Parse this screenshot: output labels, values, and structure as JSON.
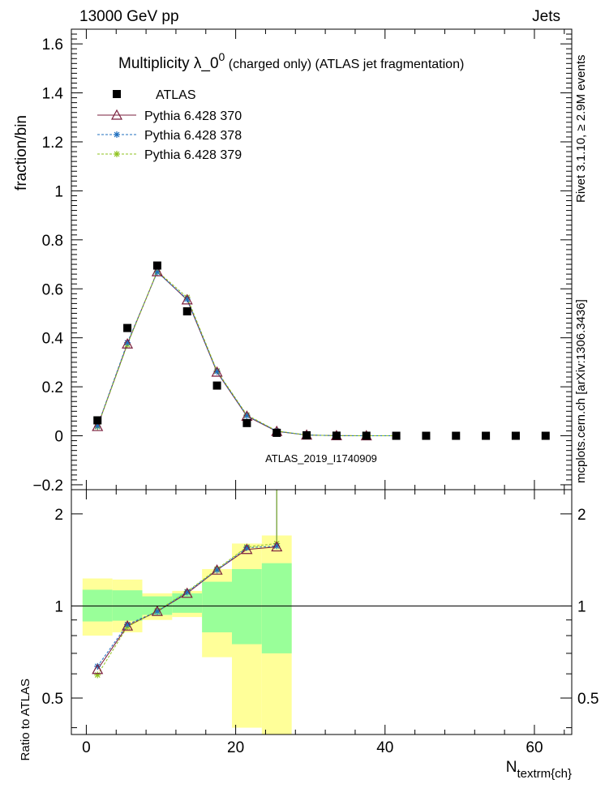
{
  "header": {
    "left": "13000 GeV pp",
    "right": "Jets"
  },
  "side_labels": {
    "rivet": "Rivet 3.1.10, ≥ 2.9M events",
    "mcplots": "mcplots.cern.ch [arXiv:1306.3436]"
  },
  "chart_data": [
    {
      "type": "scatter",
      "title": "Multiplicity  λ_0⁰ (charged only) (ATLAS jet fragmentation)",
      "title_main": "Multiplicity  λ_0",
      "title_sup": "0",
      "title_rest": " (charged only) (ATLAS jet fragmentation)",
      "ylabel": "fraction/bin",
      "watermark": "ATLAS_2019_I1740909",
      "xlim": [
        -2,
        65
      ],
      "ylim": [
        -0.22,
        1.66
      ],
      "yticks": [
        -0.2,
        0,
        0.2,
        0.4,
        0.6,
        0.8,
        1,
        1.2,
        1.4,
        1.6
      ],
      "ytick_labels": [
        "−0.2",
        "0",
        "0.2",
        "0.4",
        "0.6",
        "0.8",
        "1",
        "1.2",
        "1.4",
        "1.6"
      ],
      "legend_position": "top-left",
      "series": [
        {
          "name": "ATLAS",
          "marker": "square",
          "color": "#000000",
          "x": [
            1.5,
            5.5,
            9.5,
            13.5,
            17.5,
            21.5,
            25.5,
            29.5,
            33.5,
            37.5,
            41.5,
            45.5,
            49.5,
            53.5,
            57.5,
            61.5
          ],
          "y": [
            0.063,
            0.44,
            0.695,
            0.508,
            0.205,
            0.052,
            0.012,
            0.002,
            0.0005,
            0.0002,
            0.0,
            0.0,
            0.0,
            0.0,
            0.0,
            0.0
          ]
        },
        {
          "name": "Pythia 6.428 370",
          "marker": "triangle",
          "line": "solid",
          "color": "#7a1f3d",
          "x": [
            1.5,
            5.5,
            9.5,
            13.5,
            17.5,
            21.5,
            25.5,
            29.5,
            33.5,
            37.5
          ],
          "y": [
            0.038,
            0.375,
            0.67,
            0.555,
            0.26,
            0.08,
            0.018,
            0.003,
            0.0005,
            0.0001
          ]
        },
        {
          "name": "Pythia 6.428 378",
          "marker": "star",
          "line": "dashed",
          "color": "#1f6fbf",
          "x": [
            1.5,
            5.5,
            9.5,
            13.5,
            17.5,
            21.5,
            25.5,
            29.5,
            33.5,
            37.5,
            41.5
          ],
          "y": [
            0.04,
            0.38,
            0.668,
            0.558,
            0.262,
            0.082,
            0.019,
            0.003,
            0.0005,
            0.0001,
            0.0
          ]
        },
        {
          "name": "Pythia 6.428 379",
          "marker": "star",
          "line": "dashed",
          "color": "#8fc21e",
          "x": [
            1.5,
            5.5,
            9.5,
            13.5,
            17.5,
            21.5,
            25.5,
            29.5,
            33.5,
            37.5,
            41.5
          ],
          "y": [
            0.037,
            0.372,
            0.672,
            0.565,
            0.265,
            0.085,
            0.02,
            0.003,
            0.0006,
            0.0001,
            0.0
          ]
        }
      ]
    },
    {
      "type": "scatter",
      "ylabel": "Ratio to ATLAS",
      "xlabel_main": "N",
      "xlabel_sub": "textrm{ch}",
      "xlim": [
        -2,
        65
      ],
      "ylim": [
        0.38,
        2.4
      ],
      "yscale": "log",
      "yticks": [
        0.5,
        1,
        2
      ],
      "ytick_labels": [
        "0.5",
        "1",
        "2"
      ],
      "xticks": [
        0,
        20,
        40,
        60
      ],
      "xtick_labels": [
        "0",
        "20",
        "40",
        "60"
      ],
      "bands": {
        "bin_edges": [
          [
            -0.5,
            3.5
          ],
          [
            3.5,
            7.5
          ],
          [
            7.5,
            11.5
          ],
          [
            11.5,
            15.5
          ],
          [
            15.5,
            19.5
          ],
          [
            19.5,
            23.5
          ],
          [
            23.5,
            27.5
          ]
        ],
        "inner_lo": [
          0.89,
          0.895,
          0.935,
          0.95,
          0.82,
          0.75,
          0.7
        ],
        "inner_hi": [
          1.13,
          1.125,
          1.075,
          1.1,
          1.2,
          1.32,
          1.38
        ],
        "outer_lo": [
          0.8,
          0.82,
          0.9,
          0.92,
          0.68,
          0.4,
          0.3
        ],
        "outer_hi": [
          1.23,
          1.22,
          1.1,
          1.12,
          1.32,
          1.6,
          1.7
        ],
        "inner_color": "#99ff99",
        "outer_color": "#ffff99"
      },
      "series": [
        {
          "name": "Pythia 6.428 370",
          "color": "#7a1f3d",
          "marker": "triangle",
          "x": [
            1.5,
            5.5,
            9.5,
            13.5,
            17.5,
            21.5,
            25.5
          ],
          "y": [
            0.62,
            0.86,
            0.96,
            1.1,
            1.31,
            1.53,
            1.56
          ]
        },
        {
          "name": "Pythia 6.428 378",
          "color": "#1f6fbf",
          "marker": "star",
          "x": [
            1.5,
            5.5,
            9.5,
            13.5,
            17.5,
            21.5,
            25.5
          ],
          "y": [
            0.635,
            0.87,
            0.96,
            1.11,
            1.31,
            1.55,
            1.57
          ]
        },
        {
          "name": "Pythia 6.428 379",
          "color": "#8fc21e",
          "marker": "star",
          "x": [
            1.5,
            5.5,
            9.5,
            13.5,
            17.5,
            21.5,
            25.5
          ],
          "y": [
            0.595,
            0.855,
            0.965,
            1.115,
            1.32,
            1.56,
            1.6
          ]
        }
      ]
    }
  ]
}
